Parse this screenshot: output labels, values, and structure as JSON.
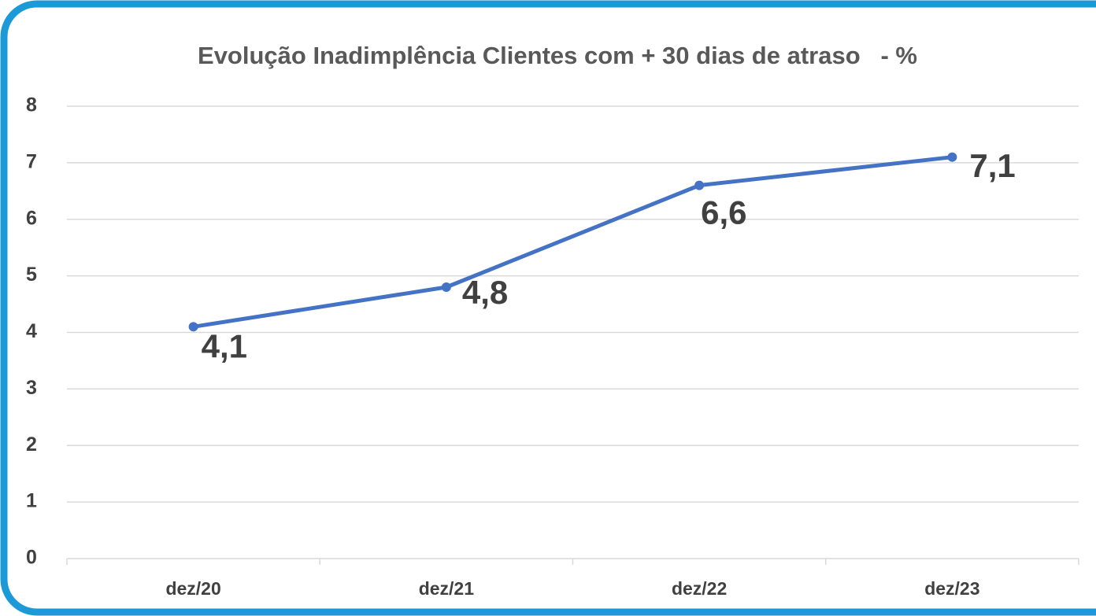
{
  "chart_data": {
    "type": "line",
    "title": "Evolução Inadimplência Clientes com + 30 dias de atraso   - %",
    "categories": [
      "dez/20",
      "dez/21",
      "dez/22",
      "dez/23"
    ],
    "values": [
      4.1,
      4.8,
      6.6,
      7.1
    ],
    "value_labels": [
      "4,1",
      "4,8",
      "6,6",
      "7,1"
    ],
    "color": "#4472c4",
    "ylim": [
      0,
      8
    ],
    "yticks": [
      0,
      1,
      2,
      3,
      4,
      5,
      6,
      7,
      8
    ],
    "grid": true
  }
}
